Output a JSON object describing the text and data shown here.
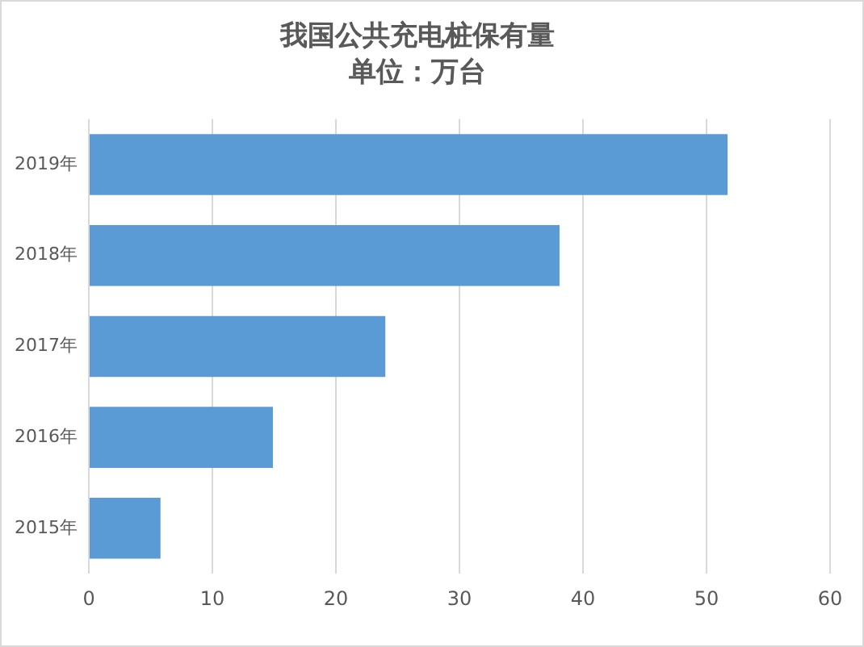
{
  "chart_data": {
    "type": "bar",
    "title": "我国公共充电桩保有量",
    "subtitle": "单位：万台",
    "orientation": "horizontal",
    "categories": [
      "2019年",
      "2018年",
      "2017年",
      "2016年",
      "2015年"
    ],
    "values": [
      51.7,
      38.1,
      24.0,
      14.9,
      5.8
    ],
    "color": "#5b9bd5",
    "xlim": [
      0,
      60
    ],
    "xticks": [
      0,
      10,
      20,
      30,
      40,
      50,
      60
    ],
    "grid": "x",
    "legend": false
  }
}
